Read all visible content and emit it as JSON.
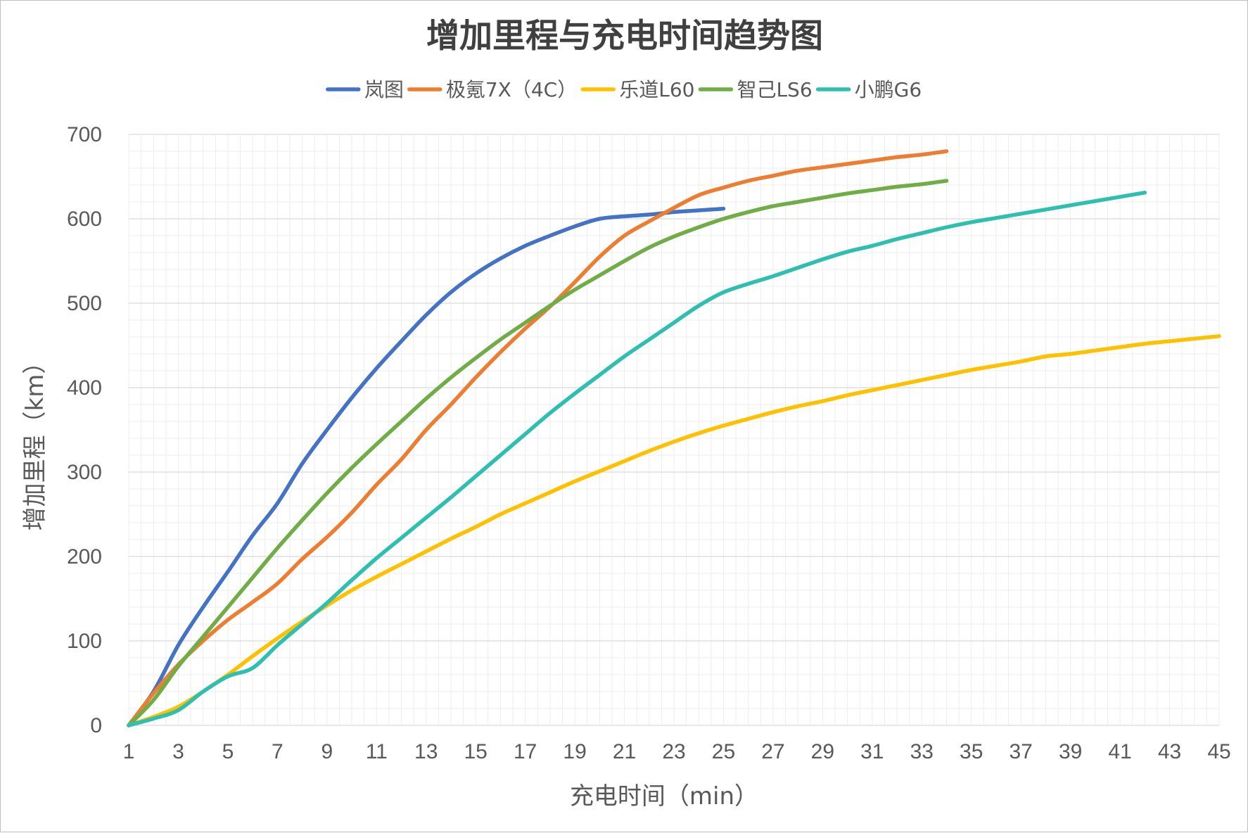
{
  "chart_data": {
    "type": "line",
    "title": "增加里程与充电时间趋势图",
    "xlabel": "充电时间（min）",
    "ylabel": "增加里程（km）",
    "xlim": [
      1,
      45
    ],
    "ylim": [
      0,
      700
    ],
    "x_ticks": [
      1,
      3,
      5,
      7,
      9,
      11,
      13,
      15,
      17,
      19,
      21,
      23,
      25,
      27,
      29,
      31,
      33,
      35,
      37,
      39,
      41,
      43,
      45
    ],
    "y_ticks": [
      0,
      100,
      200,
      300,
      400,
      500,
      600,
      700
    ],
    "grid": true,
    "legend_position": "top",
    "series": [
      {
        "name": "岚图",
        "color": "#4472C4",
        "x": [
          1,
          2,
          3,
          4,
          5,
          6,
          7,
          8,
          9,
          10,
          11,
          12,
          13,
          14,
          15,
          16,
          17,
          18,
          19,
          20,
          21,
          22,
          23,
          24,
          25
        ],
        "y": [
          0,
          40,
          95,
          140,
          182,
          225,
          263,
          310,
          350,
          388,
          423,
          455,
          486,
          513,
          535,
          553,
          568,
          580,
          591,
          600,
          603,
          605,
          608,
          610,
          612
        ]
      },
      {
        "name": "极氪7X（4C）",
        "color": "#ED7D31",
        "x": [
          1,
          2,
          3,
          4,
          5,
          6,
          7,
          8,
          9,
          10,
          11,
          12,
          13,
          14,
          15,
          16,
          17,
          18,
          19,
          20,
          21,
          22,
          23,
          24,
          25,
          26,
          27,
          28,
          29,
          30,
          31,
          32,
          33,
          34
        ],
        "y": [
          0,
          38,
          72,
          100,
          125,
          146,
          168,
          197,
          223,
          252,
          285,
          315,
          350,
          380,
          412,
          442,
          470,
          496,
          525,
          555,
          580,
          597,
          613,
          628,
          637,
          645,
          651,
          657,
          661,
          665,
          669,
          673,
          676,
          680
        ]
      },
      {
        "name": "乐道L60",
        "color": "#FFC000",
        "x": [
          1,
          2,
          3,
          4,
          5,
          6,
          7,
          8,
          9,
          10,
          11,
          12,
          13,
          14,
          15,
          16,
          17,
          18,
          19,
          20,
          21,
          22,
          23,
          24,
          25,
          26,
          27,
          28,
          29,
          30,
          31,
          32,
          33,
          34,
          35,
          36,
          37,
          38,
          39,
          40,
          41,
          42,
          43,
          44,
          45
        ],
        "y": [
          0,
          10,
          22,
          40,
          60,
          82,
          103,
          123,
          142,
          160,
          176,
          191,
          206,
          221,
          235,
          250,
          263,
          276,
          289,
          301,
          313,
          325,
          336,
          346,
          355,
          363,
          371,
          378,
          384,
          391,
          397,
          403,
          409,
          415,
          421,
          426,
          431,
          437,
          440,
          444,
          448,
          452,
          455,
          458,
          461
        ]
      },
      {
        "name": "智己LS6",
        "color": "#70AD47",
        "x": [
          1,
          2,
          3,
          4,
          5,
          6,
          7,
          8,
          9,
          10,
          11,
          12,
          13,
          14,
          15,
          16,
          17,
          18,
          19,
          20,
          21,
          22,
          23,
          24,
          25,
          26,
          27,
          28,
          29,
          30,
          31,
          32,
          33,
          34
        ],
        "y": [
          0,
          30,
          70,
          105,
          140,
          175,
          210,
          243,
          275,
          305,
          333,
          360,
          387,
          412,
          435,
          457,
          477,
          497,
          516,
          533,
          550,
          566,
          579,
          590,
          600,
          608,
          615,
          620,
          625,
          630,
          634,
          638,
          641,
          645
        ]
      },
      {
        "name": "小鹏G6",
        "color": "#2EBFB0",
        "x": [
          1,
          2,
          3,
          4,
          5,
          6,
          7,
          8,
          9,
          10,
          11,
          12,
          13,
          14,
          15,
          16,
          17,
          18,
          19,
          20,
          21,
          22,
          23,
          24,
          25,
          26,
          27,
          28,
          29,
          30,
          31,
          32,
          33,
          34,
          35,
          36,
          37,
          38,
          39,
          40,
          41,
          42
        ],
        "y": [
          0,
          8,
          18,
          40,
          58,
          68,
          95,
          120,
          145,
          172,
          198,
          222,
          246,
          270,
          295,
          320,
          345,
          370,
          393,
          415,
          437,
          457,
          477,
          497,
          513,
          523,
          532,
          542,
          552,
          561,
          568,
          576,
          583,
          590,
          596,
          601,
          606,
          611,
          616,
          621,
          626,
          631
        ]
      }
    ]
  }
}
